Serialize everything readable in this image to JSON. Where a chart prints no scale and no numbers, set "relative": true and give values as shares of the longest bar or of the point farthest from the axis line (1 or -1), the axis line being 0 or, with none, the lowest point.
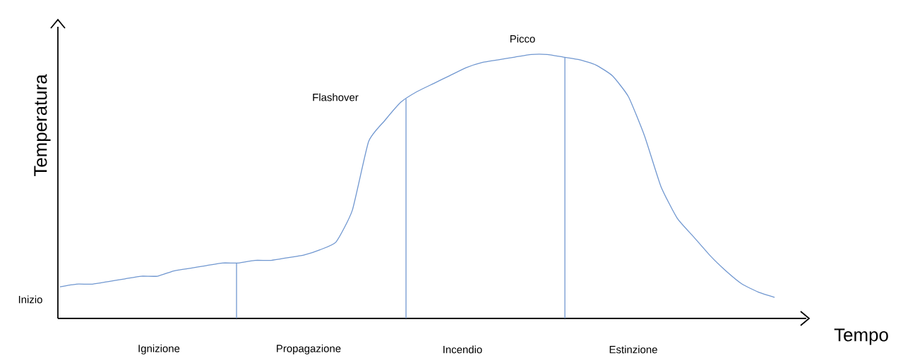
{
  "chart_data": {
    "type": "line",
    "relative": true,
    "xlabel": "Tempo",
    "ylabel": "Temperatura",
    "color": "#7097d0",
    "categories": [
      null,
      null,
      null,
      null,
      null,
      null,
      null,
      null,
      null,
      null,
      null,
      null,
      null,
      null,
      null,
      null,
      null,
      null,
      null,
      null,
      null,
      null,
      null,
      null,
      null,
      null,
      null,
      null,
      null,
      null,
      null,
      null,
      null,
      null,
      null,
      null,
      null,
      null,
      null,
      null,
      null,
      null,
      null,
      null,
      null
    ],
    "values": [
      0.12,
      0.13,
      0.13,
      0.14,
      0.15,
      0.16,
      0.16,
      0.18,
      0.19,
      0.2,
      0.21,
      0.21,
      0.22,
      0.22,
      0.23,
      0.24,
      0.26,
      0.29,
      0.41,
      0.67,
      0.75,
      0.82,
      0.86,
      0.89,
      0.92,
      0.95,
      0.97,
      0.98,
      0.99,
      1,
      1,
      0.99,
      0.98,
      0.96,
      0.92,
      0.84,
      0.69,
      0.5,
      0.38,
      0.31,
      0.24,
      0.18,
      0.13,
      0.1,
      0.08
    ],
    "annotations": [
      "Inizio",
      "Flashover",
      "Picco",
      "Ignizione",
      "Propagazione",
      "Incendio",
      "Estinzione"
    ]
  }
}
